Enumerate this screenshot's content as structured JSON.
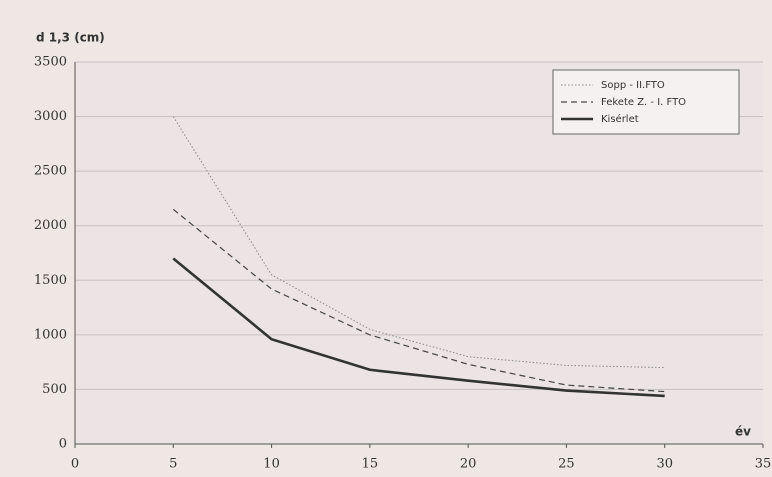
{
  "chart_data": {
    "type": "line",
    "ylabel": "d 1,3 (cm)",
    "xlabel": "év",
    "x": [
      5,
      10,
      15,
      20,
      25,
      30
    ],
    "series": [
      {
        "name": "Sopp - II.FTO",
        "color": "#8a8a8a",
        "style": "dotted",
        "values": [
          3000,
          1550,
          1050,
          800,
          720,
          700
        ]
      },
      {
        "name": "Fekete Z. - I. FTO",
        "color": "#444444",
        "style": "dashed",
        "values": [
          2150,
          1420,
          1000,
          730,
          540,
          480
        ]
      },
      {
        "name": "Kisérlet",
        "color": "#333333",
        "style": "solid",
        "values": [
          1700,
          960,
          680,
          580,
          490,
          440
        ]
      }
    ],
    "xlim": [
      0,
      35
    ],
    "xticks": [
      0,
      5,
      10,
      15,
      20,
      25,
      30,
      35
    ],
    "ylim": [
      0,
      3500
    ],
    "yticks": [
      0,
      500,
      1000,
      1500,
      2000,
      2500,
      3000,
      3500
    ],
    "grid": true,
    "legend": "top-right"
  }
}
